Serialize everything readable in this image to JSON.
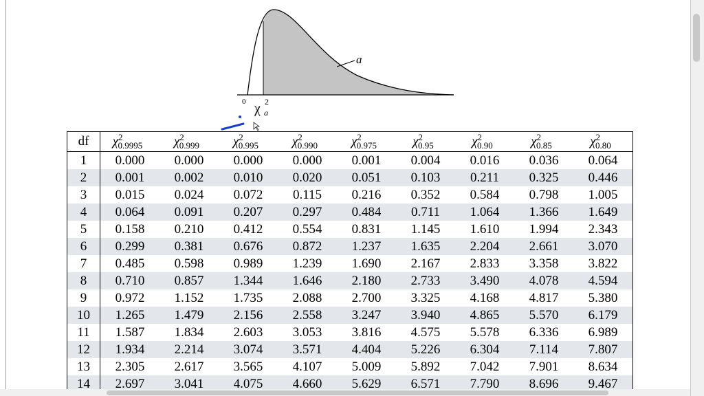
{
  "figure": {
    "curve_label": "a",
    "origin": "0",
    "axis_symbol": "χ",
    "axis_sup": "2",
    "axis_sub": "a"
  },
  "table": {
    "df_header": "df",
    "symbol": "χ",
    "sup": "2",
    "columns": [
      "0.9995",
      "0.999",
      "0.995",
      "0.990",
      "0.975",
      "0.95",
      "0.90",
      "0.85",
      "0.80"
    ],
    "rows": [
      [
        "1",
        "0.000",
        "0.000",
        "0.000",
        "0.000",
        "0.001",
        "0.004",
        "0.016",
        "0.036",
        "0.064"
      ],
      [
        "2",
        "0.001",
        "0.002",
        "0.010",
        "0.020",
        "0.051",
        "0.103",
        "0.211",
        "0.325",
        "0.446"
      ],
      [
        "3",
        "0.015",
        "0.024",
        "0.072",
        "0.115",
        "0.216",
        "0.352",
        "0.584",
        "0.798",
        "1.005"
      ],
      [
        "4",
        "0.064",
        "0.091",
        "0.207",
        "0.297",
        "0.484",
        "0.711",
        "1.064",
        "1.366",
        "1.649"
      ],
      [
        "5",
        "0.158",
        "0.210",
        "0.412",
        "0.554",
        "0.831",
        "1.145",
        "1.610",
        "1.994",
        "2.343"
      ],
      [
        "6",
        "0.299",
        "0.381",
        "0.676",
        "0.872",
        "1.237",
        "1.635",
        "2.204",
        "2.661",
        "3.070"
      ],
      [
        "7",
        "0.485",
        "0.598",
        "0.989",
        "1.239",
        "1.690",
        "2.167",
        "2.833",
        "3.358",
        "3.822"
      ],
      [
        "8",
        "0.710",
        "0.857",
        "1.344",
        "1.646",
        "2.180",
        "2.733",
        "3.490",
        "4.078",
        "4.594"
      ],
      [
        "9",
        "0.972",
        "1.152",
        "1.735",
        "2.088",
        "2.700",
        "3.325",
        "4.168",
        "4.817",
        "5.380"
      ],
      [
        "10",
        "1.265",
        "1.479",
        "2.156",
        "2.558",
        "3.247",
        "3.940",
        "4.865",
        "5.570",
        "6.179"
      ],
      [
        "11",
        "1.587",
        "1.834",
        "2.603",
        "3.053",
        "3.816",
        "4.575",
        "5.578",
        "6.336",
        "6.989"
      ],
      [
        "12",
        "1.934",
        "2.214",
        "3.074",
        "3.571",
        "4.404",
        "5.226",
        "6.304",
        "7.114",
        "7.807"
      ],
      [
        "13",
        "2.305",
        "2.617",
        "3.565",
        "4.107",
        "5.009",
        "5.892",
        "7.042",
        "7.901",
        "8.634"
      ],
      [
        "14",
        "2.697",
        "3.041",
        "4.075",
        "4.660",
        "5.629",
        "6.571",
        "7.790",
        "8.696",
        "9.467"
      ]
    ]
  }
}
